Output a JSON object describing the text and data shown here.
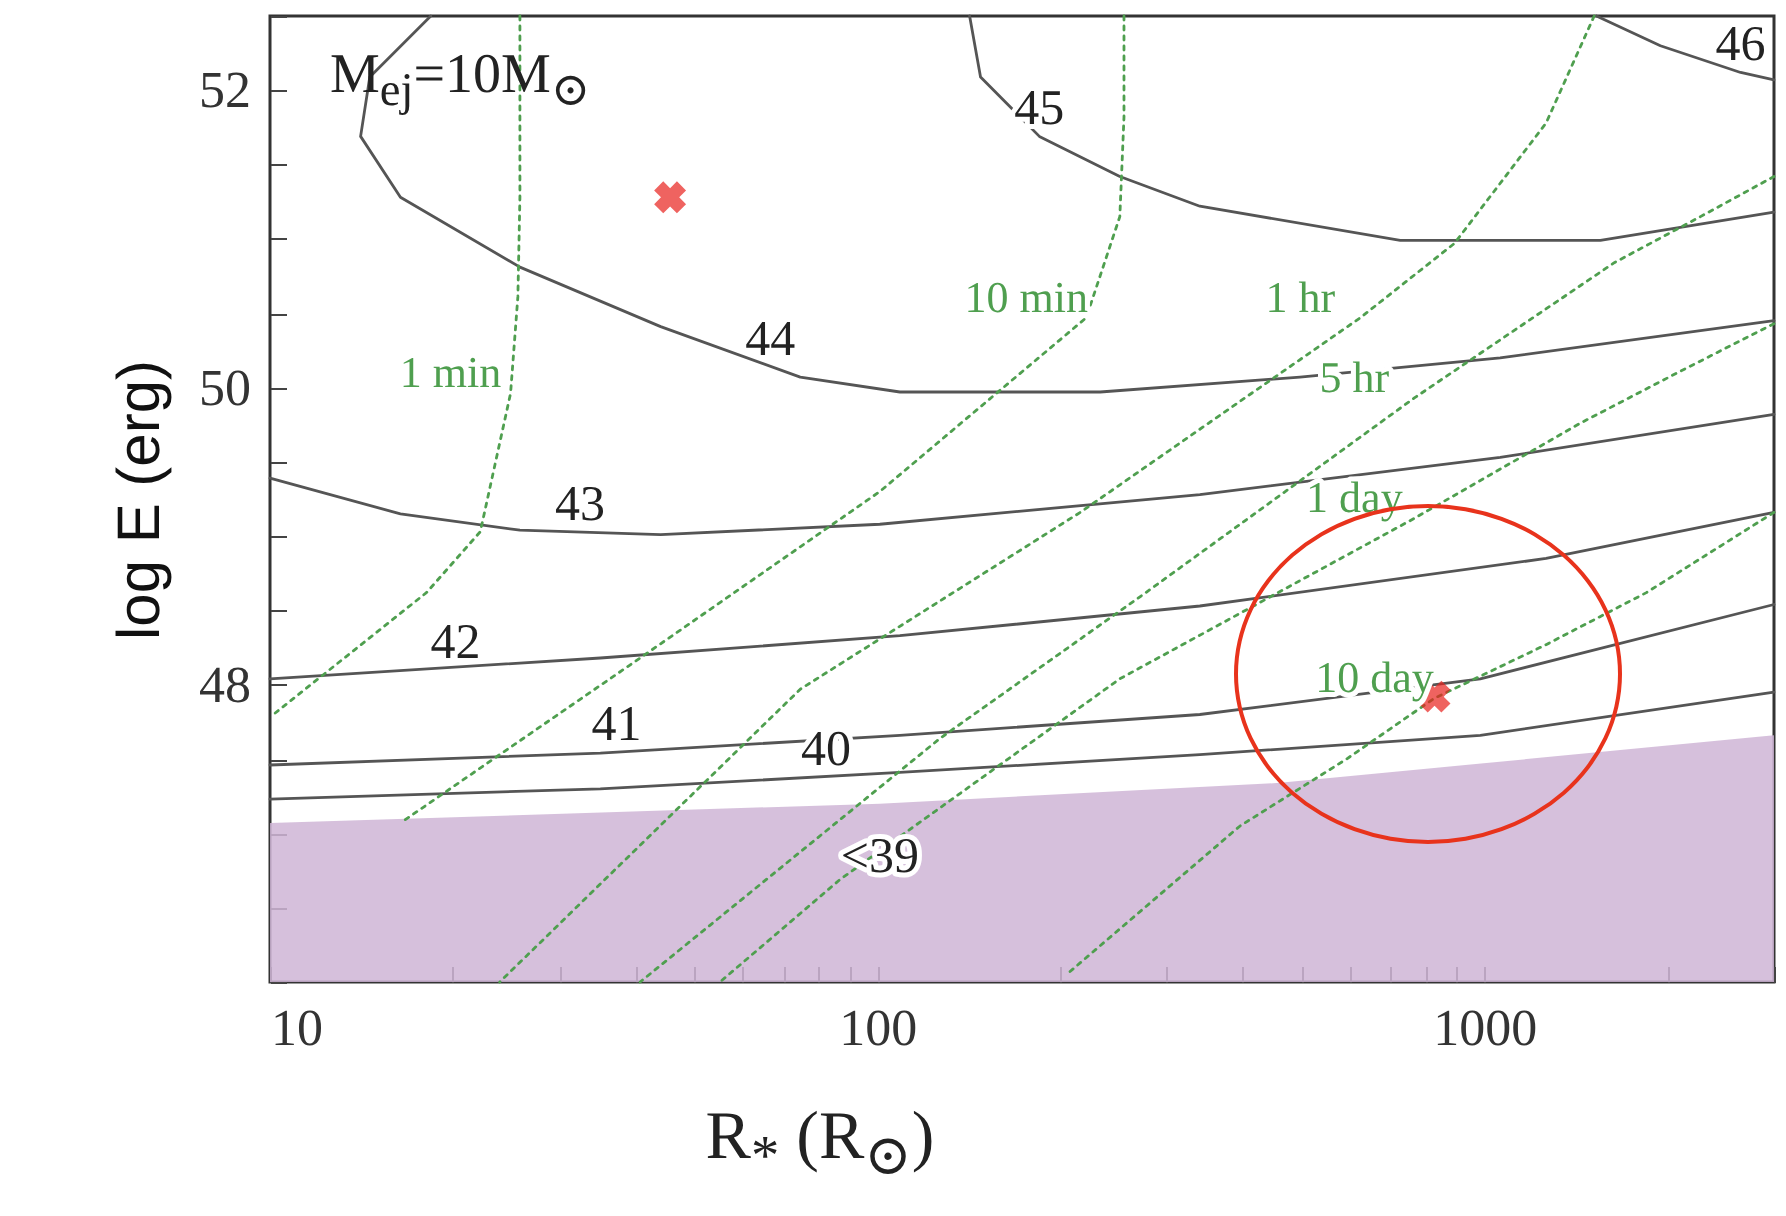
{
  "chart_data": {
    "type": "line",
    "xlabel": "R$_{*}$ (R$_{⊙}$)",
    "ylabel": "log E (erg)",
    "log": "x",
    "xlim": [
      10,
      3000
    ],
    "ylim": [
      46,
      52.5
    ],
    "xticks": [
      10,
      {
        "value": 20,
        "label": null
      },
      {
        "value": 30,
        "label": null
      },
      {
        "value": 40,
        "label": null
      },
      {
        "value": 50,
        "label": null
      },
      {
        "value": 60,
        "label": null
      },
      {
        "value": 70,
        "label": null
      },
      {
        "value": 80,
        "label": null
      },
      {
        "value": 90,
        "label": null
      },
      100,
      {
        "value": 200,
        "label": null
      },
      {
        "value": 300,
        "label": null
      },
      {
        "value": 400,
        "label": null
      },
      {
        "value": 500,
        "label": null
      },
      {
        "value": 600,
        "label": null
      },
      {
        "value": 700,
        "label": null
      },
      {
        "value": 800,
        "label": null
      },
      {
        "value": 900,
        "label": null
      },
      1000,
      {
        "value": 2000,
        "label": null
      },
      {
        "value": 3000,
        "label": null
      }
    ],
    "yticks": [
      {
        "value": 46,
        "label": null
      },
      {
        "value": 46.5,
        "label": null
      },
      {
        "value": 47,
        "label": null
      },
      {
        "value": 47.5,
        "label": null
      },
      48,
      {
        "value": 48.5,
        "label": null
      },
      {
        "value": 49,
        "label": null
      },
      {
        "value": 49.5,
        "label": null
      },
      50,
      {
        "value": 50.5,
        "label": null
      },
      {
        "value": 51,
        "label": null
      },
      {
        "value": 51.5,
        "label": null
      },
      52,
      {
        "value": 52.5,
        "label": null
      }
    ],
    "grid": false,
    "series": [
      {
        "color": "#555555",
        "x": [
          18.4,
          14.6,
          14.1,
          16.4,
          25.8,
          44,
          74.7,
          109,
          233,
          497,
          1062,
          3000
        ],
        "values": [
          52.5,
          52.09,
          51.69,
          51.28,
          50.81,
          50.41,
          50.07,
          49.97,
          49.97,
          50.07,
          50.2,
          50.45
        ]
      },
      {
        "color": "#555555",
        "x": [
          142,
          148,
          185,
          251,
          340,
          727,
          1553,
          3000
        ],
        "values": [
          52.5,
          52.09,
          51.69,
          51.42,
          51.22,
          50.99,
          50.99,
          51.18
        ]
      },
      {
        "color": "#555555",
        "x": [
          1530,
          1950,
          2643,
          3000
        ],
        "values": [
          52.5,
          52.3,
          52.12,
          52.07
        ]
      },
      {
        "color": "#555555",
        "x": [
          10,
          16.4,
          25.8,
          44,
          101,
          340,
          1062,
          3000
        ],
        "values": [
          49.39,
          49.15,
          49.04,
          49.01,
          49.08,
          49.28,
          49.53,
          49.82
        ]
      },
      {
        "color": "#555555",
        "x": [
          10,
          35,
          109,
          340,
          1264,
          3000
        ],
        "values": [
          48.04,
          48.18,
          48.33,
          48.53,
          48.85,
          49.16
        ]
      },
      {
        "color": "#555555",
        "x": [
          10,
          35,
          109,
          340,
          985,
          3000
        ],
        "values": [
          47.46,
          47.54,
          47.66,
          47.8,
          48.04,
          48.54
        ]
      },
      {
        "color": "#555555",
        "x": [
          10,
          35,
          109,
          340,
          985,
          3000
        ],
        "values": [
          47.23,
          47.3,
          47.41,
          47.53,
          47.66,
          47.95
        ]
      },
      {
        "type": "area",
        "color": "#cfb5d6",
        "x": [
          10,
          101,
          461,
          3000
        ],
        "values": [
          47.07,
          47.2,
          47.34,
          47.66
        ]
      },
      {
        "name": "1 min",
        "color": "#4f9f4f",
        "line_style": "dotted",
        "x": [
          25.8,
          25.8,
          25.6,
          24.9,
          22.2,
          18.1,
          10.2
        ],
        "values": [
          52.5,
          51.28,
          50.61,
          49.96,
          49.03,
          48.62,
          47.81
        ]
      },
      {
        "name": "10 min",
        "color": "#4f9f4f",
        "line_style": "dotted",
        "x": [
          255,
          255,
          251,
          221,
          101,
          40.7,
          16.4
        ],
        "values": [
          52.5,
          51.82,
          51.15,
          50.47,
          49.3,
          48.18,
          47.07
        ]
      },
      {
        "name": "1 hr",
        "color": "#4f9f4f",
        "line_style": "dotted",
        "x": [
          1517,
          1264,
          893,
          625,
          216,
          74.7,
          23.9
        ],
        "values": [
          52.5,
          51.78,
          50.97,
          50.47,
          49.16,
          47.97,
          46
        ]
      },
      {
        "name": "5 hr",
        "color": "#4f9f4f",
        "line_style": "dotted",
        "x": [
          3000,
          2270,
          1637,
          767,
          277,
          127,
          40.7
        ],
        "values": [
          51.42,
          51.15,
          50.84,
          49.93,
          48.62,
          47.64,
          46
        ]
      },
      {
        "name": "1 day",
        "color": "#4f9f4f",
        "line_style": "dotted",
        "x": [
          3000,
          2104,
          1439,
          767,
          251,
          86.9,
          55.1
        ],
        "values": [
          50.43,
          50.11,
          49.76,
          49.12,
          48.04,
          46.69,
          46
        ]
      },
      {
        "name": "10 day",
        "color": "#4f9f4f",
        "line_style": "dotted",
        "x": [
          3000,
          1849,
          1264,
          828,
          593,
          396,
          205
        ],
        "values": [
          49.16,
          48.62,
          48.27,
          47.91,
          47.5,
          47.05,
          46.05
        ]
      },
      {
        "type": "scatter",
        "marker": "cross",
        "color": "#e8211c",
        "x": [
          45.6,
          828
        ],
        "values": [
          51.28,
          47.92
        ]
      }
    ],
    "annotations": [
      "M$_{ej}$=10M$_{⊙}$",
      {
        "text": "44",
        "x": 66.7,
        "y": 50.14
      },
      {
        "text": "45",
        "x": 185,
        "y": 51.69
      },
      {
        "text": "46",
        "x": 2643,
        "y": 52.12
      },
      {
        "text": "43",
        "x": 32.4,
        "y": 49.03
      },
      {
        "text": "42",
        "x": 20.2,
        "y": 48.1
      },
      {
        "text": "41",
        "x": 37.2,
        "y": 47.55
      },
      {
        "text": "40",
        "x": 82.4,
        "y": 47.38
      },
      {
        "text": "<39",
        "x": 101,
        "y": 47.2
      }
    ]
  }
}
